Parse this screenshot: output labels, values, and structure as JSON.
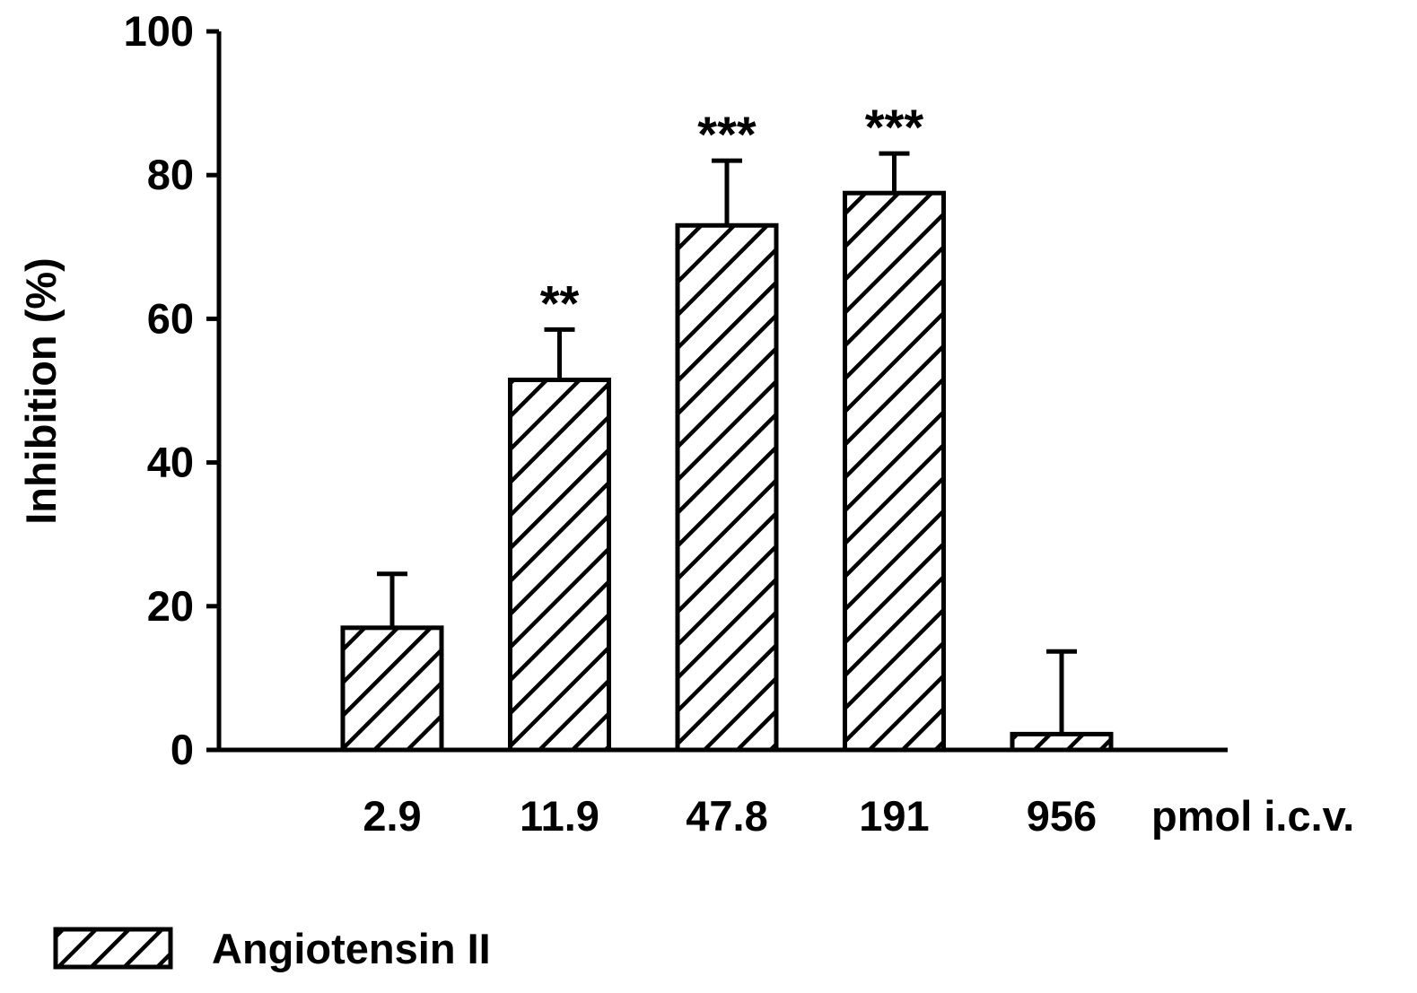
{
  "chart_data": {
    "type": "bar",
    "title": "",
    "xlabel": "",
    "x_unit_label": "pmol i.c.v.",
    "ylabel": "Inhibition (%)",
    "ylim": [
      0,
      100
    ],
    "yticks": [
      0,
      20,
      40,
      60,
      80,
      100
    ],
    "categories": [
      "2.9",
      "11.9",
      "47.8",
      "191",
      "956"
    ],
    "series": [
      {
        "name": "Angiotensin II",
        "values": [
          17,
          51.5,
          73,
          77.5,
          2.2
        ],
        "errors": [
          7.5,
          7,
          9,
          5.5,
          11.5
        ],
        "significance": [
          "",
          "**",
          "***",
          "***",
          ""
        ],
        "fill": "hatched"
      }
    ],
    "grid": false,
    "legend_position": "bottom-left",
    "colors": {
      "bar_fill": "#ffffff",
      "bar_hatch": "#000000",
      "axis": "#000000"
    }
  }
}
